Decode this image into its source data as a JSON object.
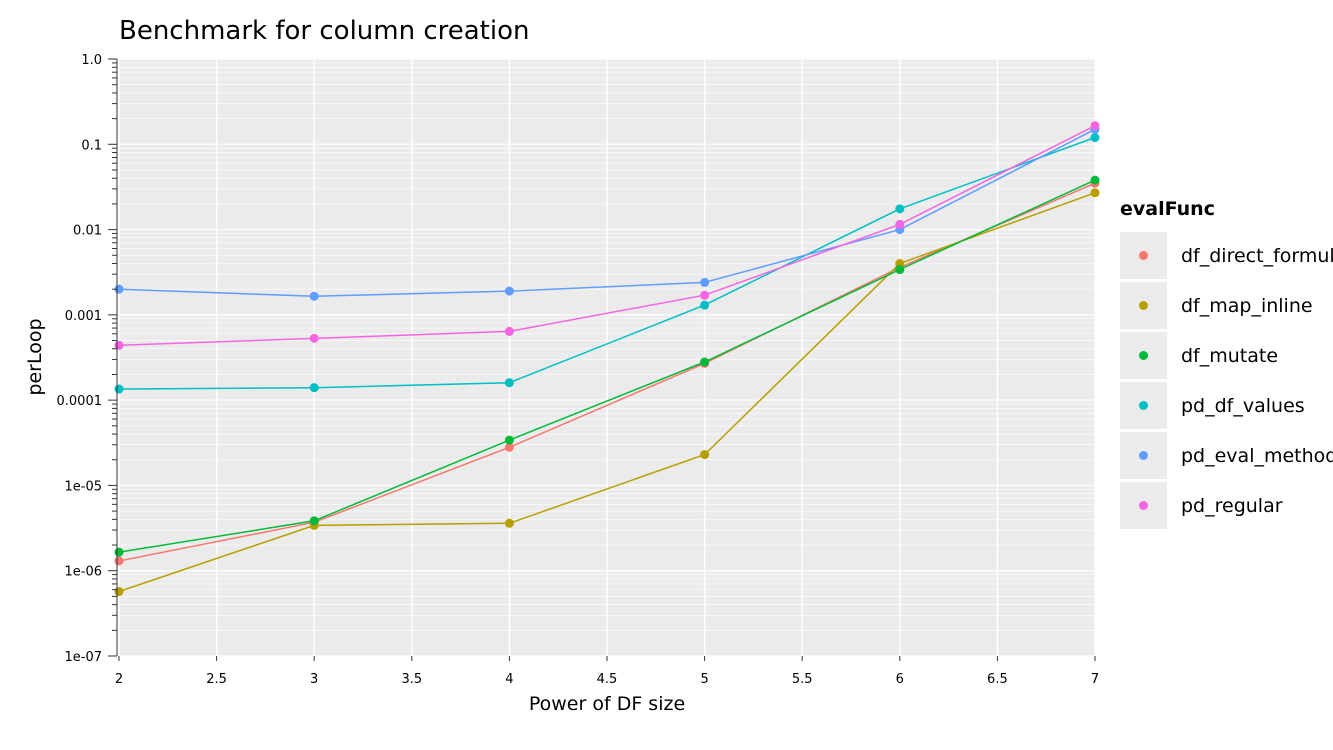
{
  "chart_data": {
    "type": "line",
    "title": "Benchmark for column creation",
    "xlabel": "Power of DF size",
    "ylabel": "perLoop",
    "x": [
      2,
      3,
      4,
      5,
      6,
      7
    ],
    "xlim": [
      2,
      7
    ],
    "ylim": [
      1e-07,
      1.0
    ],
    "yscale": "log",
    "x_ticks": [
      "2",
      "2.5",
      "3",
      "3.5",
      "4",
      "4.5",
      "5",
      "5.5",
      "6",
      "6.5",
      "7"
    ],
    "y_ticks": [
      "1e-07",
      "1e-06",
      "1e-05",
      "0.0001",
      "0.001",
      "0.01",
      "0.1",
      "1.0"
    ],
    "grid": true,
    "markers": true,
    "legend": {
      "title": "evalFunc",
      "placement": "right"
    },
    "series": [
      {
        "name": "df_direct_formula",
        "color": "#F8766D",
        "values": [
          1.3e-06,
          3.7e-06,
          2.8e-05,
          0.00027,
          0.0036,
          0.035
        ]
      },
      {
        "name": "df_map_inline",
        "color": "#B79F00",
        "values": [
          5.7e-07,
          3.4e-06,
          3.6e-06,
          2.3e-05,
          0.004,
          0.027
        ]
      },
      {
        "name": "df_mutate",
        "color": "#00BA38",
        "values": [
          1.65e-06,
          3.85e-06,
          3.4e-05,
          0.00028,
          0.0034,
          0.038
        ]
      },
      {
        "name": "pd_df_values",
        "color": "#00BFC4",
        "values": [
          0.000135,
          0.00014,
          0.00016,
          0.0013,
          0.0175,
          0.12
        ]
      },
      {
        "name": "pd_eval_method",
        "color": "#619CFF",
        "values": [
          0.002,
          0.00165,
          0.0019,
          0.0024,
          0.01,
          0.15
        ]
      },
      {
        "name": "pd_regular",
        "color": "#F564E3",
        "values": [
          0.00044,
          0.00053,
          0.00064,
          0.0017,
          0.0115,
          0.165
        ]
      }
    ]
  }
}
